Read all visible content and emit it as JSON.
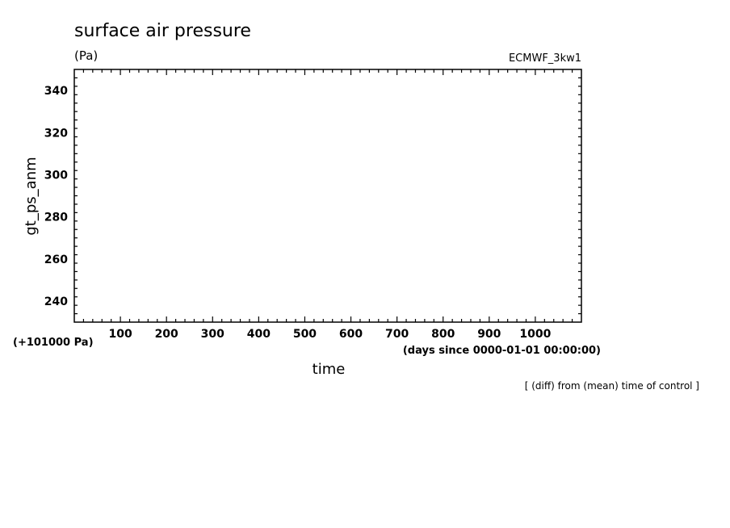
{
  "chart_data": {
    "type": "line",
    "title": "surface air pressure",
    "units": "(Pa)",
    "dataset": "ECMWF_3kw1",
    "xlabel": "time",
    "xunits": "(days since 0000-01-01 00:00:00)",
    "ylabel": "gt_ps_anm",
    "yoffset": "(+101000 Pa)",
    "note": "[ (diff) from (mean) time of control ]",
    "xlim": [
      0,
      1100
    ],
    "ylim": [
      230,
      350
    ],
    "xticks": [
      100,
      200,
      300,
      400,
      500,
      600,
      700,
      800,
      900,
      1000
    ],
    "xtick_labels": [
      "100",
      "200",
      "300",
      "400",
      "500",
      "600",
      "700",
      "800",
      "900",
      "1000"
    ],
    "yticks": [
      240,
      260,
      280,
      300,
      320,
      340
    ],
    "ytick_labels": [
      "240",
      "260",
      "280",
      "300",
      "320",
      "340"
    ],
    "series": [],
    "grid": false
  }
}
